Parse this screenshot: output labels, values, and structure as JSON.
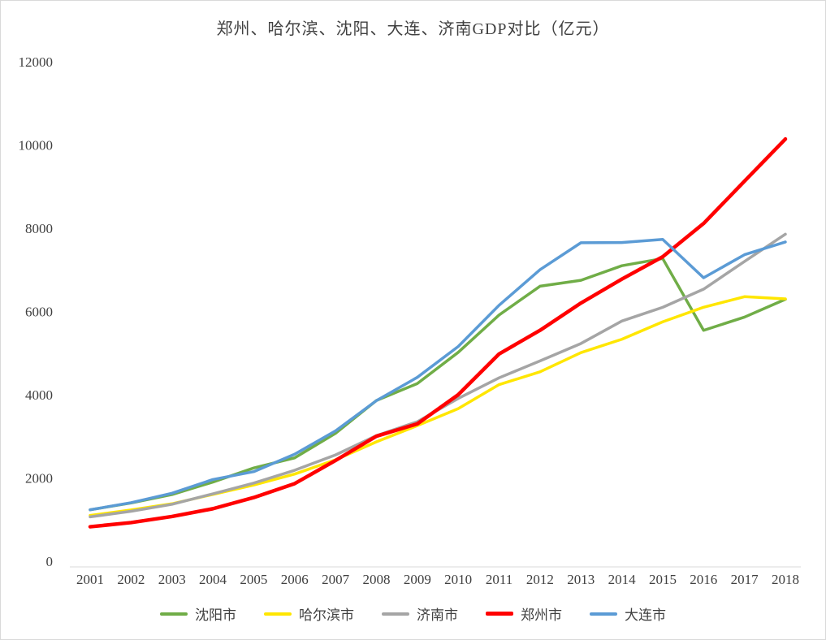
{
  "chart_data": {
    "type": "line",
    "title": "郑州、哈尔滨、沈阳、大连、济南GDP对比（亿元）",
    "unit": "亿元",
    "categories": [
      "2001",
      "2002",
      "2003",
      "2004",
      "2005",
      "2006",
      "2007",
      "2008",
      "2009",
      "2010",
      "2011",
      "2012",
      "2013",
      "2014",
      "2015",
      "2016",
      "2017",
      "2018"
    ],
    "series": [
      {
        "name": "沈阳市",
        "color": "#70AD47",
        "values": [
          1235,
          1400,
          1602,
          1901,
          2240,
          2483,
          3074,
          3861,
          4268,
          5018,
          5916,
          6607,
          6749,
          7099,
          7272,
          5546,
          5865,
          6292
        ]
      },
      {
        "name": "哈尔滨市",
        "color": "#FFE600",
        "values": [
          1100,
          1232,
          1380,
          1605,
          1830,
          2094,
          2437,
          2868,
          3258,
          3665,
          4243,
          4550,
          5011,
          5332,
          5751,
          6102,
          6355,
          6302
        ]
      },
      {
        "name": "济南市",
        "color": "#A5A5A5",
        "values": [
          1066,
          1200,
          1367,
          1619,
          1876,
          2185,
          2554,
          3017,
          3351,
          3911,
          4406,
          4813,
          5230,
          5770,
          6100,
          6536,
          7202,
          7857
        ]
      },
      {
        "name": "郑州市",
        "color": "#FF0000",
        "values": [
          828,
          928,
          1074,
          1261,
          1530,
          1864,
          2421,
          3004,
          3300,
          4000,
          4980,
          5547,
          6202,
          6777,
          7315,
          8114,
          9130,
          10143
        ]
      },
      {
        "name": "大连市",
        "color": "#5B9BD5",
        "values": [
          1236,
          1406,
          1633,
          1962,
          2152,
          2570,
          3131,
          3858,
          4418,
          5158,
          6150,
          7003,
          7651,
          7656,
          7732,
          6810,
          7364,
          7669
        ]
      }
    ],
    "ylim": [
      0,
      12000
    ],
    "ytick_interval": 2000,
    "yticks": [
      0,
      2000,
      4000,
      6000,
      8000,
      10000,
      12000
    ],
    "grid": false,
    "legend_position": "bottom"
  }
}
